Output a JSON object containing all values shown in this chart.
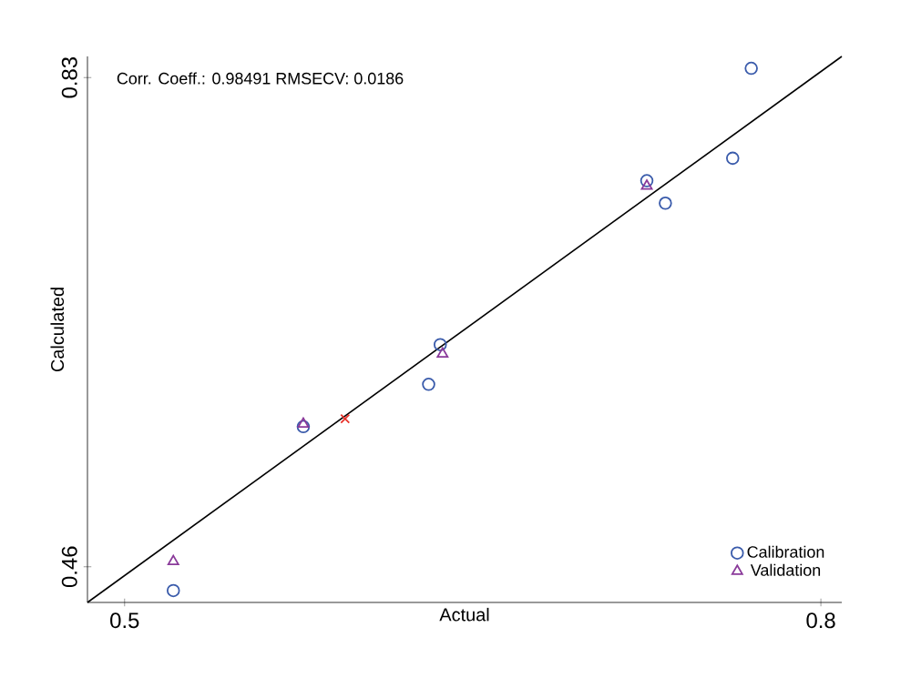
{
  "chart_data": {
    "type": "scatter",
    "xlabel": "Actual",
    "ylabel": "Calculated",
    "xlim": [
      0.484,
      0.809
    ],
    "ylim": [
      0.433,
      0.846
    ],
    "xticks": [
      0.5,
      0.8
    ],
    "yticks": [
      0.46,
      0.83
    ],
    "legend": "bottom right",
    "grid": false,
    "annotations": [
      "Corr. Coeff.: 0.98491   RMSECV: 0.0186"
    ],
    "series": [
      {
        "name": "Calibration",
        "color": "#3a5bab",
        "marker": "circle",
        "x": [
          0.77,
          0.762,
          0.725,
          0.733,
          0.636,
          0.631,
          0.577,
          0.521
        ],
        "values": [
          0.837,
          0.769,
          0.752,
          0.735,
          0.628,
          0.598,
          0.566,
          0.442
        ]
      },
      {
        "name": "Validation",
        "color": "#8a3a9a",
        "marker": "triangle",
        "x": [
          0.725,
          0.637,
          0.577,
          0.521
        ],
        "values": [
          0.748,
          0.621,
          0.568,
          0.464
        ]
      },
      {
        "color": "#e8322a",
        "marker": "cross",
        "x": [
          0.595
        ],
        "values": [
          0.572
        ]
      },
      {
        "type": "line",
        "color": "#000000",
        "marker": "none",
        "line_style": "solid",
        "x": [
          0.484,
          0.809
        ],
        "values": [
          0.433,
          0.846
        ]
      }
    ]
  }
}
